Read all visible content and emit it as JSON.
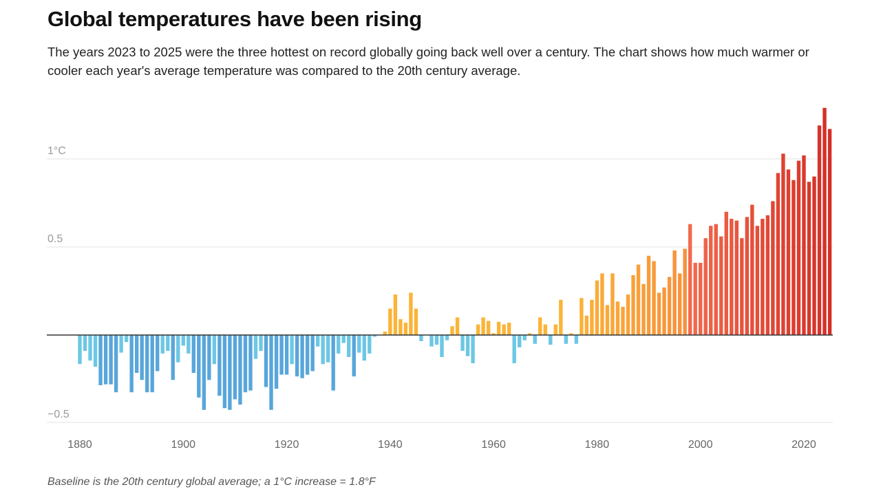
{
  "title": "Global temperatures have been rising",
  "subtitle": "The years 2023 to 2025 were the three hottest on record globally going back well over a century. The chart shows how much warmer or cooler each year's average temperature was compared to the 20th century average.",
  "footer": "Baseline is the 20th century global average; a 1°C increase = 1.8°F",
  "chart_data": {
    "type": "bar",
    "title": "Global temperatures have been rising",
    "xlabel": "",
    "ylabel": "",
    "x_start": 1880,
    "x_end": 2025,
    "xlim": [
      1880,
      2025
    ],
    "ylim": [
      -0.5,
      1.3
    ],
    "x_ticks": [
      "1880",
      "1900",
      "1920",
      "1940",
      "1960",
      "1980",
      "2000",
      "2020"
    ],
    "y_ticks": [
      {
        "value": 1,
        "label": "1°C"
      },
      {
        "value": 0.5,
        "label": "0.5"
      },
      {
        "value": -0.5,
        "label": "−0.5"
      }
    ],
    "grid": true,
    "colors": {
      "cold_dark": "#58a6da",
      "cold_light": "#6dc7e4",
      "warm_start": "#fbb438",
      "warm_mid": "#f7913c",
      "hot_start": "#f26a4b",
      "hot_end": "#d42f27",
      "zero_line": "#333333",
      "grid": "#e3e3e3"
    },
    "values": [
      -0.165,
      -0.09,
      -0.145,
      -0.18,
      -0.285,
      -0.28,
      -0.28,
      -0.325,
      -0.1,
      -0.04,
      -0.325,
      -0.215,
      -0.255,
      -0.325,
      -0.325,
      -0.205,
      -0.105,
      -0.09,
      -0.255,
      -0.155,
      -0.06,
      -0.105,
      -0.215,
      -0.355,
      -0.425,
      -0.255,
      -0.165,
      -0.345,
      -0.415,
      -0.425,
      -0.365,
      -0.395,
      -0.325,
      -0.315,
      -0.135,
      -0.09,
      -0.295,
      -0.425,
      -0.305,
      -0.225,
      -0.225,
      -0.165,
      -0.235,
      -0.245,
      -0.225,
      -0.205,
      -0.065,
      -0.165,
      -0.155,
      -0.315,
      -0.105,
      -0.045,
      -0.125,
      -0.235,
      -0.1,
      -0.145,
      -0.105,
      -0.01,
      0.0,
      0.02,
      0.15,
      0.23,
      0.09,
      0.07,
      0.24,
      0.15,
      -0.035,
      0.0,
      -0.065,
      -0.055,
      -0.125,
      -0.03,
      0.05,
      0.1,
      -0.09,
      -0.12,
      -0.16,
      0.06,
      0.1,
      0.08,
      0.01,
      0.075,
      0.06,
      0.07,
      -0.16,
      -0.07,
      -0.03,
      0.01,
      -0.05,
      0.1,
      0.06,
      -0.055,
      0.06,
      0.2,
      -0.05,
      0.01,
      -0.05,
      0.21,
      0.11,
      0.2,
      0.31,
      0.35,
      0.17,
      0.35,
      0.19,
      0.16,
      0.23,
      0.34,
      0.4,
      0.29,
      0.45,
      0.42,
      0.24,
      0.27,
      0.33,
      0.48,
      0.35,
      0.49,
      0.63,
      0.41,
      0.41,
      0.55,
      0.62,
      0.63,
      0.56,
      0.7,
      0.66,
      0.65,
      0.55,
      0.67,
      0.74,
      0.62,
      0.66,
      0.68,
      0.76,
      0.92,
      1.03,
      0.94,
      0.88,
      0.99,
      1.02,
      0.87,
      0.9,
      1.19,
      1.29,
      1.17
    ]
  }
}
